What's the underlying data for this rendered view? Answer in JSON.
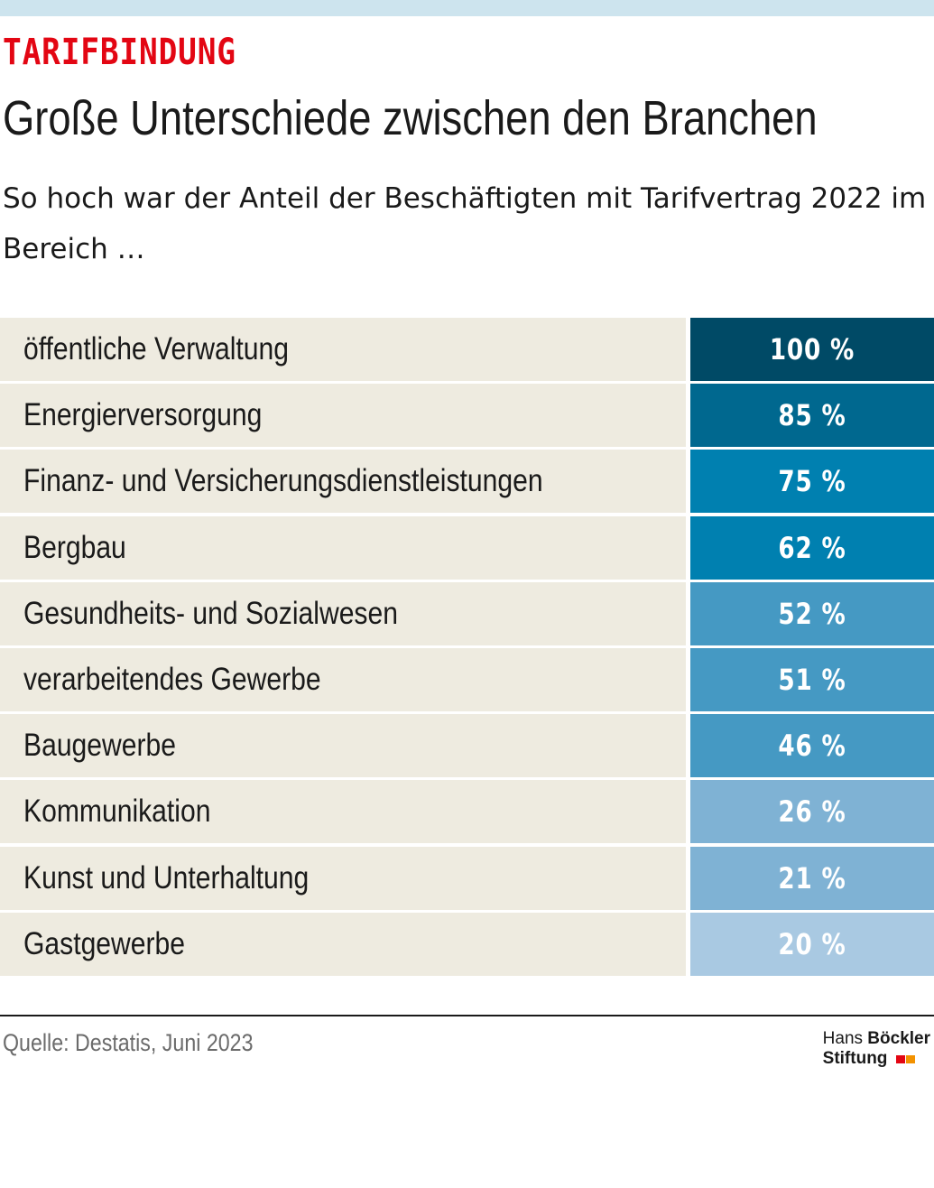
{
  "header": {
    "kicker": "TARIFBINDUNG",
    "title": "Große Unterschiede zwischen den Branchen",
    "subtitle": "So hoch war der Anteil der Beschäftigten mit Tarifvertrag 2022 im Bereich …"
  },
  "colors": {
    "kicker": "#e30613",
    "label_background": "#eeebe0",
    "value_text": "#ffffff",
    "top_bar": "#cde4ee"
  },
  "chart_data": {
    "type": "table",
    "title": "Große Unterschiede zwischen den Branchen",
    "unit": "%",
    "rows": [
      {
        "label": "öffentliche Verwaltung",
        "value": 100,
        "value_text": "100 %",
        "color": "#004a66"
      },
      {
        "label": "Energierversorgung",
        "value": 85,
        "value_text": "85 %",
        "color": "#00688f"
      },
      {
        "label": "Finanz- und Versicherungsdienstleistungen",
        "value": 75,
        "value_text": "75 %",
        "color": "#0080b0"
      },
      {
        "label": "Bergbau",
        "value": 62,
        "value_text": "62 %",
        "color": "#0080b0"
      },
      {
        "label": "Gesundheits- und Sozialwesen",
        "value": 52,
        "value_text": "52 %",
        "color": "#4599c3"
      },
      {
        "label": "verarbeitendes Gewerbe",
        "value": 51,
        "value_text": "51 %",
        "color": "#4599c3"
      },
      {
        "label": "Baugewerbe",
        "value": 46,
        "value_text": "46 %",
        "color": "#4599c3"
      },
      {
        "label": "Kommunikation",
        "value": 26,
        "value_text": "26 %",
        "color": "#7fb2d4"
      },
      {
        "label": "Kunst und Unterhaltung",
        "value": 21,
        "value_text": "21 %",
        "color": "#7fb2d4"
      },
      {
        "label": "Gastgewerbe",
        "value": 20,
        "value_text": "20 %",
        "color": "#a9c9e2"
      }
    ]
  },
  "footer": {
    "source": "Quelle: Destatis, Juni 2023",
    "logo_line1_prefix": "Hans",
    "logo_line1_bold": "Böckler",
    "logo_line2": "Stiftung",
    "logo_colors": [
      "#e30613",
      "#f39200"
    ]
  }
}
